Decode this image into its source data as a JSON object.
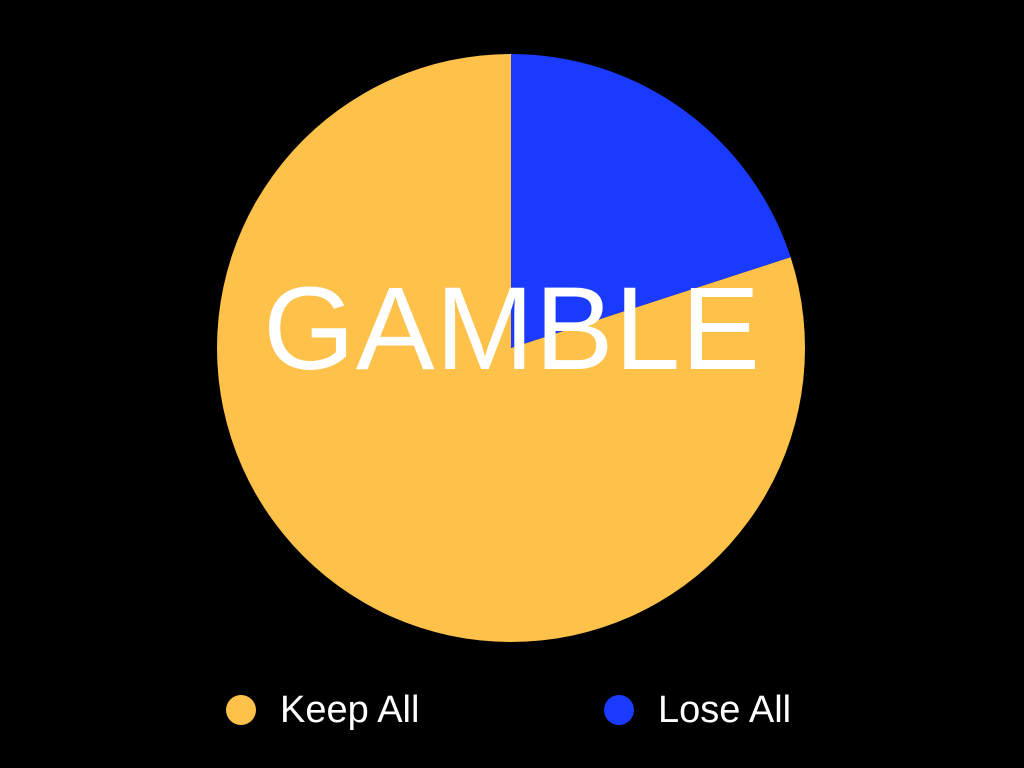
{
  "slide": {
    "background": "#000000",
    "overlay_text": "GAMBLE"
  },
  "chart_data": {
    "type": "pie",
    "title": "",
    "start_angle_deg": 0,
    "direction": "counterclockwise",
    "slices": [
      {
        "label": "Keep All",
        "value": 80,
        "color": "#FEC14A"
      },
      {
        "label": "Lose All",
        "value": 20,
        "color": "#1A3BFF"
      }
    ],
    "legend": {
      "position": "bottom",
      "entries": [
        {
          "label": "Keep All",
          "color": "#FEC14A"
        },
        {
          "label": "Lose All",
          "color": "#1A3BFF"
        }
      ]
    }
  }
}
